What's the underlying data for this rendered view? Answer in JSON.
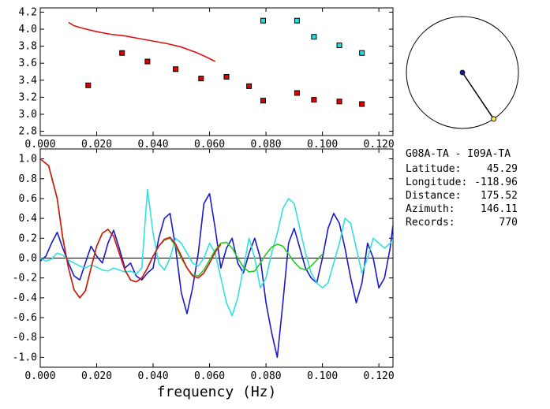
{
  "chart_data": [
    {
      "type": "scatter",
      "xlim": [
        0.0,
        0.125
      ],
      "ylim": [
        2.75,
        4.25
      ],
      "x_ticks": [
        0.0,
        0.02,
        0.04,
        0.06,
        0.08,
        0.1,
        0.12
      ],
      "x_tick_labels": [
        "0.000",
        "0.020",
        "0.040",
        "0.060",
        "0.080",
        "0.100",
        "0.120"
      ],
      "y_ticks": [
        2.8,
        3.0,
        3.2,
        3.4,
        3.6,
        3.8,
        4.0,
        4.2
      ],
      "y_tick_labels": [
        "2.8",
        "3.0",
        "3.2",
        "3.4",
        "3.6",
        "3.8",
        "4.0",
        "4.2"
      ],
      "colors": {
        "red_points": "#e00000",
        "cyan_points": "#22dddd",
        "curve": "#dd1111"
      },
      "series": [
        {
          "x": [
            0.017,
            0.029,
            0.038,
            0.048,
            0.057,
            0.066,
            0.074,
            0.079,
            0.091,
            0.097,
            0.106,
            0.114
          ],
          "y": [
            3.34,
            3.72,
            3.62,
            3.53,
            3.42,
            3.44,
            3.33,
            3.16,
            3.25,
            3.17,
            3.15,
            3.12
          ]
        },
        {
          "x": [
            0.079,
            0.091,
            0.097,
            0.106,
            0.114
          ],
          "y": [
            4.1,
            4.1,
            3.91,
            3.81,
            3.72
          ]
        },
        {
          "x": [
            0.01,
            0.012,
            0.015,
            0.02,
            0.025,
            0.03,
            0.035,
            0.04,
            0.045,
            0.05,
            0.055,
            0.059,
            0.062
          ],
          "y": [
            4.08,
            4.04,
            4.01,
            3.97,
            3.94,
            3.92,
            3.89,
            3.86,
            3.83,
            3.79,
            3.73,
            3.67,
            3.62
          ]
        }
      ]
    },
    {
      "type": "line",
      "xlim": [
        0.0,
        0.125
      ],
      "ylim": [
        -1.1,
        1.1
      ],
      "x_ticks": [
        0.0,
        0.02,
        0.04,
        0.06,
        0.08,
        0.1,
        0.12
      ],
      "x_tick_labels": [
        "0.000",
        "0.020",
        "0.040",
        "0.060",
        "0.080",
        "0.100",
        "0.120"
      ],
      "y_ticks": [
        1.0,
        0.8,
        0.6,
        0.4,
        0.2,
        0.0,
        -0.2,
        -0.4,
        -0.6,
        -0.8,
        -1.0
      ],
      "y_tick_labels": [
        "1.0",
        "0.8",
        "0.6",
        "0.4",
        "0.2",
        "0.0",
        "-0.2",
        "-0.4",
        "-0.6",
        "-0.8",
        "-1.0"
      ],
      "xlabel": "frequency (Hz)",
      "zero_line": true,
      "colors": {
        "blue": "#1a1acc",
        "cyan": "#33e0e0",
        "green": "#22cc22",
        "red": "#dd1111"
      },
      "series": [
        {
          "x": [
            0.0,
            0.002,
            0.004,
            0.006,
            0.008,
            0.01,
            0.012,
            0.014,
            0.016,
            0.018,
            0.02,
            0.022,
            0.024,
            0.026,
            0.028,
            0.03,
            0.032,
            0.034,
            0.036,
            0.038,
            0.04,
            0.042,
            0.044,
            0.046,
            0.048,
            0.05,
            0.052,
            0.054,
            0.056,
            0.058,
            0.06,
            0.062,
            0.064,
            0.066,
            0.068,
            0.07,
            0.072,
            0.074,
            0.076,
            0.078,
            0.08,
            0.082,
            0.084,
            0.086,
            0.088,
            0.09,
            0.092,
            0.094,
            0.096,
            0.098,
            0.1,
            0.102,
            0.104,
            0.106,
            0.108,
            0.11,
            0.112,
            0.114,
            0.116,
            0.118,
            0.12,
            0.122,
            0.124,
            0.125
          ],
          "y": [
            -0.03,
            0.02,
            0.15,
            0.26,
            0.1,
            -0.05,
            -0.18,
            -0.22,
            -0.05,
            0.12,
            0.02,
            -0.05,
            0.15,
            0.28,
            0.1,
            -0.1,
            -0.05,
            -0.18,
            -0.22,
            -0.15,
            -0.1,
            0.2,
            0.4,
            0.45,
            0.1,
            -0.35,
            -0.56,
            -0.3,
            0.05,
            0.55,
            0.65,
            0.3,
            -0.1,
            0.1,
            0.2,
            -0.05,
            -0.15,
            0.05,
            0.2,
            0.0,
            -0.45,
            -0.75,
            -1.0,
            -0.45,
            0.15,
            0.3,
            0.1,
            -0.1,
            -0.2,
            -0.25,
            0.0,
            0.3,
            0.45,
            0.35,
            0.1,
            -0.2,
            -0.45,
            -0.25,
            0.15,
            0.0,
            -0.3,
            -0.2,
            0.1,
            0.33
          ]
        },
        {
          "x": [
            0.0,
            0.002,
            0.004,
            0.006,
            0.008,
            0.01,
            0.012,
            0.014,
            0.016,
            0.018,
            0.02,
            0.022,
            0.024,
            0.026,
            0.028,
            0.03,
            0.032,
            0.034,
            0.036,
            0.037,
            0.038,
            0.04,
            0.042,
            0.044,
            0.046,
            0.048,
            0.05,
            0.052,
            0.054,
            0.056,
            0.058,
            0.06,
            0.062,
            0.064,
            0.066,
            0.068,
            0.07,
            0.072,
            0.074,
            0.076,
            0.078,
            0.08,
            0.082,
            0.084,
            0.086,
            0.088,
            0.09,
            0.092,
            0.094,
            0.096,
            0.098,
            0.1,
            0.102,
            0.104,
            0.106,
            0.108,
            0.11,
            0.112,
            0.114,
            0.116,
            0.118,
            0.12,
            0.122,
            0.124,
            0.125
          ],
          "y": [
            0.0,
            -0.03,
            -0.01,
            0.05,
            0.03,
            -0.02,
            -0.05,
            -0.08,
            -0.1,
            -0.07,
            -0.09,
            -0.12,
            -0.13,
            -0.1,
            -0.12,
            -0.14,
            -0.13,
            -0.16,
            -0.1,
            0.3,
            0.69,
            0.25,
            -0.05,
            -0.12,
            0.0,
            0.2,
            0.15,
            0.05,
            -0.05,
            -0.08,
            0.0,
            0.15,
            0.05,
            -0.2,
            -0.45,
            -0.58,
            -0.4,
            -0.1,
            0.2,
            0.0,
            -0.3,
            -0.2,
            0.05,
            0.25,
            0.5,
            0.6,
            0.55,
            0.3,
            0.05,
            -0.15,
            -0.25,
            -0.3,
            -0.25,
            -0.05,
            0.15,
            0.4,
            0.35,
            0.1,
            -0.15,
            0.0,
            0.2,
            0.15,
            0.1,
            0.15,
            0.18
          ]
        },
        {
          "x": [
            0.0,
            0.003,
            0.006,
            0.008,
            0.01,
            0.012,
            0.014,
            0.016,
            0.018,
            0.02,
            0.022,
            0.024,
            0.026,
            0.028,
            0.03,
            0.032,
            0.034,
            0.036,
            0.038,
            0.04,
            0.042,
            0.044,
            0.046,
            0.048,
            0.05,
            0.052,
            0.054,
            0.056,
            0.058,
            0.06,
            0.062,
            0.064,
            0.066,
            0.068,
            0.07,
            0.072,
            0.074,
            0.076,
            0.078,
            0.08,
            0.082,
            0.084,
            0.086,
            0.088,
            0.09,
            0.092,
            0.094,
            0.096,
            0.098,
            0.1
          ],
          "y": [
            1.0,
            0.93,
            0.6,
            0.2,
            -0.1,
            -0.32,
            -0.4,
            -0.33,
            -0.1,
            0.12,
            0.25,
            0.29,
            0.22,
            0.05,
            -0.12,
            -0.22,
            -0.24,
            -0.2,
            -0.1,
            0.02,
            0.12,
            0.18,
            0.2,
            0.12,
            0.0,
            -0.1,
            -0.17,
            -0.18,
            -0.12,
            -0.02,
            0.08,
            0.15,
            0.16,
            0.1,
            0.0,
            -0.09,
            -0.14,
            -0.13,
            -0.05,
            0.04,
            0.11,
            0.14,
            0.12,
            0.04,
            -0.04,
            -0.1,
            -0.12,
            -0.08,
            -0.02,
            0.04
          ]
        },
        {
          "x": [
            0.0,
            0.003,
            0.006,
            0.008,
            0.01,
            0.012,
            0.014,
            0.016,
            0.018,
            0.02,
            0.022,
            0.024,
            0.026,
            0.028,
            0.03,
            0.032,
            0.034,
            0.036,
            0.038,
            0.04,
            0.042,
            0.044,
            0.046,
            0.048,
            0.05,
            0.052,
            0.054,
            0.056,
            0.058,
            0.06,
            0.062,
            0.064
          ],
          "y": [
            1.0,
            0.93,
            0.6,
            0.2,
            -0.1,
            -0.32,
            -0.4,
            -0.33,
            -0.1,
            0.12,
            0.25,
            0.29,
            0.22,
            0.05,
            -0.12,
            -0.22,
            -0.24,
            -0.2,
            -0.1,
            0.02,
            0.12,
            0.19,
            0.21,
            0.14,
            0.02,
            -0.1,
            -0.18,
            -0.2,
            -0.15,
            -0.05,
            0.06,
            0.14
          ]
        }
      ]
    }
  ],
  "azimuth_dial": {
    "azimuth": 146.11,
    "colors": {
      "center": "#1a1a99",
      "end": "#eeee33"
    }
  },
  "station_info": {
    "pair": "G08A-TA  - I09A-TA",
    "rows": [
      {
        "label": "Latitude:",
        "value": "45.29"
      },
      {
        "label": "Longitude:",
        "value": "-118.96"
      },
      {
        "label": "Distance:",
        "value": "175.52"
      },
      {
        "label": "Azimuth:",
        "value": "146.11"
      },
      {
        "label": "Records:",
        "value": "770"
      }
    ]
  }
}
